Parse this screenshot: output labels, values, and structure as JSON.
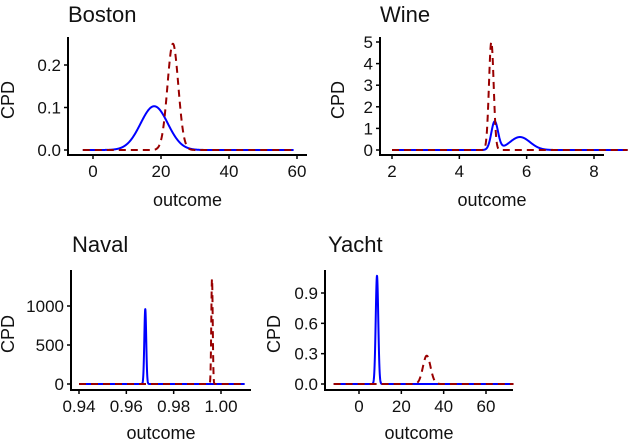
{
  "chart_data": [
    {
      "type": "line",
      "title": "Boston",
      "xlabel": "outcome",
      "ylabel": "CPD",
      "xlim": [
        -3,
        59
      ],
      "ylim": [
        0,
        0.26
      ],
      "xticks": [
        "0",
        "20",
        "40",
        "60"
      ],
      "xtick_values": [
        0,
        20,
        40,
        60
      ],
      "yticks": [
        "0.0",
        "0.1",
        "0.2"
      ],
      "ytick_values": [
        0,
        0.1,
        0.2
      ],
      "grid": false,
      "series": [
        {
          "style": "solid",
          "color": "#0000ff",
          "components": [
            {
              "mean": 18,
              "sd": 4,
              "peak": 0.103
            }
          ]
        },
        {
          "style": "dashed",
          "color": "#990000",
          "components": [
            {
              "mean": 23.5,
              "sd": 1.6,
              "peak": 0.25
            }
          ]
        }
      ]
    },
    {
      "type": "line",
      "title": "Wine",
      "xlabel": "outcome",
      "ylabel": "CPD",
      "xlim": [
        2,
        9
      ],
      "ylim": [
        0,
        5.1
      ],
      "xticks": [
        "2",
        "4",
        "6",
        "8"
      ],
      "xtick_values": [
        2,
        4,
        6,
        8
      ],
      "yticks": [
        "0",
        "1",
        "2",
        "3",
        "4",
        "5"
      ],
      "ytick_values": [
        0,
        1,
        2,
        3,
        4,
        5
      ],
      "grid": false,
      "series": [
        {
          "style": "solid",
          "color": "#0000ff",
          "components": [
            {
              "mean": 5.05,
              "sd": 0.1,
              "peak": 1.3
            },
            {
              "mean": 5.8,
              "sd": 0.3,
              "peak": 0.6
            }
          ]
        },
        {
          "style": "dashed",
          "color": "#990000",
          "components": [
            {
              "mean": 4.95,
              "sd": 0.07,
              "peak": 5.0
            }
          ]
        }
      ]
    },
    {
      "type": "line",
      "title": "Naval",
      "xlabel": "outcome",
      "ylabel": "CPD",
      "xlim": [
        0.94,
        1.01
      ],
      "ylim": [
        0,
        1400
      ],
      "xticks": [
        "0.94",
        "0.96",
        "0.98",
        "1.00"
      ],
      "xtick_values": [
        0.94,
        0.96,
        0.98,
        1.0
      ],
      "yticks": [
        "0",
        "500",
        "1000"
      ],
      "ytick_values": [
        0,
        500,
        1000
      ],
      "grid": false,
      "series": [
        {
          "style": "solid",
          "color": "#0000ff",
          "components": [
            {
              "mean": 0.968,
              "sd": 0.0004,
              "peak": 960
            }
          ]
        },
        {
          "style": "dashed",
          "color": "#990000",
          "components": [
            {
              "mean": 0.9962,
              "sd": 0.0003,
              "peak": 1350
            }
          ]
        }
      ]
    },
    {
      "type": "line",
      "title": "Yacht",
      "xlabel": "outcome",
      "ylabel": "CPD",
      "xlim": [
        -12,
        73
      ],
      "ylim": [
        0,
        1.1
      ],
      "xticks": [
        "0",
        "20",
        "40",
        "60"
      ],
      "xtick_values": [
        0,
        20,
        40,
        60
      ],
      "yticks": [
        "0.0",
        "0.3",
        "0.6",
        "0.9"
      ],
      "ytick_values": [
        0,
        0.3,
        0.6,
        0.9
      ],
      "grid": false,
      "series": [
        {
          "style": "solid",
          "color": "#0000ff",
          "components": [
            {
              "mean": 8.5,
              "sd": 0.6,
              "peak": 1.07
            }
          ]
        },
        {
          "style": "dashed",
          "color": "#990000",
          "components": [
            {
              "mean": 32,
              "sd": 1.8,
              "peak": 0.28
            }
          ]
        }
      ]
    }
  ]
}
